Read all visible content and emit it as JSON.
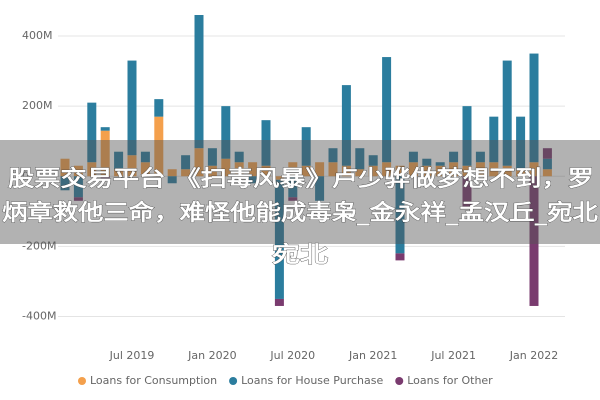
{
  "chart_data": {
    "type": "bar",
    "stacked": true,
    "categories": [
      null,
      null,
      null,
      null,
      null,
      "Jul 2019",
      null,
      null,
      null,
      null,
      null,
      "Jan 2020",
      null,
      null,
      null,
      null,
      null,
      "Jul 2020",
      null,
      null,
      null,
      null,
      null,
      "Jan 2021",
      null,
      null,
      null,
      null,
      null,
      "Jul 2021",
      null,
      null,
      null,
      null,
      null,
      "Jan 2022",
      null
    ],
    "series": [
      {
        "name": "Loans for Consumption",
        "color": "#f4a04c",
        "values": [
          50,
          30,
          40,
          130,
          20,
          60,
          40,
          170,
          20,
          20,
          80,
          30,
          50,
          40,
          40,
          30,
          -10,
          40,
          30,
          40,
          40,
          30,
          20,
          30,
          40,
          30,
          40,
          30,
          30,
          40,
          30,
          40,
          40,
          30,
          20,
          40,
          20
        ]
      },
      {
        "name": "Loans for House Purchase",
        "color": "#2b7d9e",
        "values": [
          -40,
          -60,
          170,
          10,
          50,
          270,
          30,
          50,
          -20,
          40,
          380,
          50,
          150,
          30,
          -20,
          130,
          -340,
          -60,
          110,
          -70,
          40,
          230,
          60,
          30,
          300,
          -220,
          30,
          20,
          10,
          30,
          170,
          30,
          130,
          300,
          150,
          310,
          30
        ]
      },
      {
        "name": "Loans for Other",
        "color": "#7a3b6f",
        "values": [
          0,
          -10,
          0,
          -10,
          0,
          0,
          0,
          0,
          0,
          0,
          0,
          0,
          0,
          0,
          0,
          0,
          -20,
          -10,
          0,
          0,
          0,
          0,
          0,
          0,
          0,
          -20,
          0,
          0,
          0,
          0,
          -90,
          0,
          0,
          0,
          0,
          -370,
          30
        ]
      }
    ],
    "ylim": [
      -450,
      460
    ],
    "yticks": [
      {
        "value": 400,
        "label": "400M"
      },
      {
        "value": 200,
        "label": "200M"
      },
      0,
      {
        "value": -200,
        "label": "-200M"
      },
      {
        "value": -400,
        "label": "-400M"
      }
    ],
    "grid": true,
    "legend": "bottom"
  },
  "overlay_text": [
    "股票交易平台 《扫毒风暴》卢少骅做梦想不到，罗",
    "炳章救他三命，难怪他能成毒枭_金永祥_孟汉丘_宛北",
    "宛北"
  ]
}
